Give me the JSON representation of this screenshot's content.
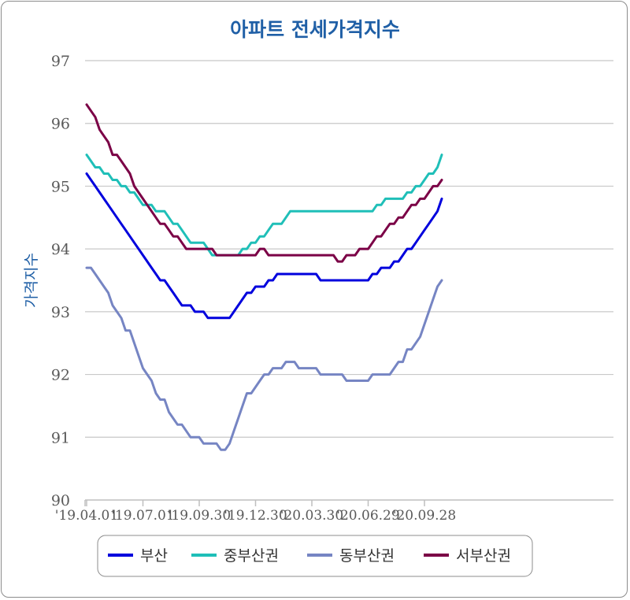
{
  "chart_data": {
    "type": "line",
    "title": "아파트 전세가격지수",
    "ylabel": "가격지수",
    "xlabel": "",
    "ylim": [
      90,
      97
    ],
    "yticks": [
      "90",
      "91",
      "92",
      "93",
      "94",
      "95",
      "96",
      "97"
    ],
    "xtick_labels": [
      "'19.04.01",
      "'19.07.01",
      "'19.09.30",
      "'19.12.30",
      "'20.03.30",
      "'20.06.29",
      "'20.09.28"
    ],
    "grid": "horizontal",
    "legend_position": "bottom",
    "x_points": 83,
    "series": [
      {
        "name": "부산",
        "color": "#0000dd",
        "values": [
          95.2,
          95.1,
          95.0,
          94.9,
          94.8,
          94.7,
          94.6,
          94.5,
          94.4,
          94.3,
          94.2,
          94.1,
          94.0,
          93.9,
          93.8,
          93.7,
          93.6,
          93.5,
          93.5,
          93.4,
          93.3,
          93.2,
          93.1,
          93.1,
          93.1,
          93.0,
          93.0,
          93.0,
          92.9,
          92.9,
          92.9,
          92.9,
          92.9,
          92.9,
          93.0,
          93.1,
          93.2,
          93.3,
          93.3,
          93.4,
          93.4,
          93.4,
          93.5,
          93.5,
          93.6,
          93.6,
          93.6,
          93.6,
          93.6,
          93.6,
          93.6,
          93.6,
          93.6,
          93.6,
          93.5,
          93.5,
          93.5,
          93.5,
          93.5,
          93.5,
          93.5,
          93.5,
          93.5,
          93.5,
          93.5,
          93.5,
          93.6,
          93.6,
          93.7,
          93.7,
          93.7,
          93.8,
          93.8,
          93.9,
          94.0,
          94.0,
          94.1,
          94.2,
          94.3,
          94.4,
          94.5,
          94.6,
          94.8
        ]
      },
      {
        "name": "중부산권",
        "color": "#1fbfb8",
        "values": [
          95.5,
          95.4,
          95.3,
          95.3,
          95.2,
          95.2,
          95.1,
          95.1,
          95.0,
          95.0,
          94.9,
          94.9,
          94.8,
          94.7,
          94.7,
          94.7,
          94.6,
          94.6,
          94.6,
          94.5,
          94.4,
          94.4,
          94.3,
          94.2,
          94.1,
          94.1,
          94.1,
          94.1,
          94.0,
          93.9,
          93.9,
          93.9,
          93.9,
          93.9,
          93.9,
          93.9,
          94.0,
          94.0,
          94.1,
          94.1,
          94.2,
          94.2,
          94.3,
          94.4,
          94.4,
          94.4,
          94.5,
          94.6,
          94.6,
          94.6,
          94.6,
          94.6,
          94.6,
          94.6,
          94.6,
          94.6,
          94.6,
          94.6,
          94.6,
          94.6,
          94.6,
          94.6,
          94.6,
          94.6,
          94.6,
          94.6,
          94.6,
          94.7,
          94.7,
          94.8,
          94.8,
          94.8,
          94.8,
          94.8,
          94.9,
          94.9,
          95.0,
          95.0,
          95.1,
          95.2,
          95.2,
          95.3,
          95.5
        ]
      },
      {
        "name": "동부산권",
        "color": "#7685c3",
        "values": [
          93.7,
          93.7,
          93.6,
          93.5,
          93.4,
          93.3,
          93.1,
          93.0,
          92.9,
          92.7,
          92.7,
          92.5,
          92.3,
          92.1,
          92.0,
          91.9,
          91.7,
          91.6,
          91.6,
          91.4,
          91.3,
          91.2,
          91.2,
          91.1,
          91.0,
          91.0,
          91.0,
          90.9,
          90.9,
          90.9,
          90.9,
          90.8,
          90.8,
          90.9,
          91.1,
          91.3,
          91.5,
          91.7,
          91.7,
          91.8,
          91.9,
          92.0,
          92.0,
          92.1,
          92.1,
          92.1,
          92.2,
          92.2,
          92.2,
          92.1,
          92.1,
          92.1,
          92.1,
          92.1,
          92.0,
          92.0,
          92.0,
          92.0,
          92.0,
          92.0,
          91.9,
          91.9,
          91.9,
          91.9,
          91.9,
          91.9,
          92.0,
          92.0,
          92.0,
          92.0,
          92.0,
          92.1,
          92.2,
          92.2,
          92.4,
          92.4,
          92.5,
          92.6,
          92.8,
          93.0,
          93.2,
          93.4,
          93.5
        ]
      },
      {
        "name": "서부산권",
        "color": "#7b0046",
        "values": [
          96.3,
          96.2,
          96.1,
          95.9,
          95.8,
          95.7,
          95.5,
          95.5,
          95.4,
          95.3,
          95.2,
          95.0,
          94.9,
          94.8,
          94.7,
          94.6,
          94.5,
          94.4,
          94.4,
          94.3,
          94.2,
          94.2,
          94.1,
          94.0,
          94.0,
          94.0,
          94.0,
          94.0,
          94.0,
          94.0,
          93.9,
          93.9,
          93.9,
          93.9,
          93.9,
          93.9,
          93.9,
          93.9,
          93.9,
          93.9,
          94.0,
          94.0,
          93.9,
          93.9,
          93.9,
          93.9,
          93.9,
          93.9,
          93.9,
          93.9,
          93.9,
          93.9,
          93.9,
          93.9,
          93.9,
          93.9,
          93.9,
          93.9,
          93.8,
          93.8,
          93.9,
          93.9,
          93.9,
          94.0,
          94.0,
          94.0,
          94.1,
          94.2,
          94.2,
          94.3,
          94.4,
          94.4,
          94.5,
          94.5,
          94.6,
          94.7,
          94.7,
          94.8,
          94.8,
          94.9,
          95.0,
          95.0,
          95.1
        ]
      }
    ]
  }
}
